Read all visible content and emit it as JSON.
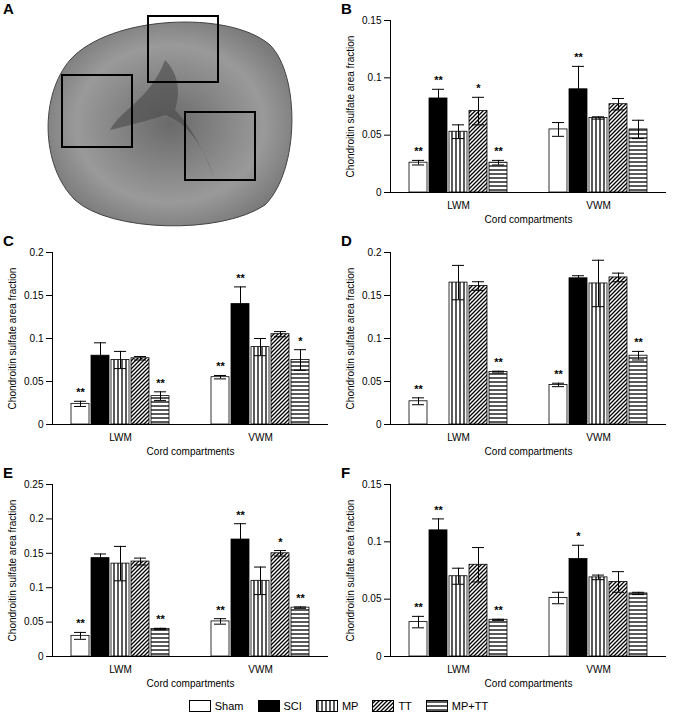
{
  "panel_a": {
    "label": "A"
  },
  "chart_data": [
    {
      "type": "bar",
      "title": "B",
      "x_label": "Cord compartments",
      "y_label": "Chondroitin sulfate area fraction",
      "categories": [
        "LWM",
        "VWM"
      ],
      "ylim": [
        0,
        0.15
      ],
      "yticks": [
        0,
        0.05,
        0.1,
        0.15
      ],
      "series": [
        {
          "name": "Sham",
          "color": "#ffffff",
          "values": [
            0.026,
            0.055
          ],
          "errors": [
            0.002,
            0.006
          ],
          "annotations": [
            "**",
            null
          ]
        },
        {
          "name": "SCI",
          "color": "#000000",
          "values": [
            0.082,
            0.09
          ],
          "errors": [
            0.008,
            0.02
          ],
          "annotations": [
            "**",
            "**"
          ]
        },
        {
          "name": "MP",
          "color": "#000000",
          "values": [
            0.053,
            0.065
          ],
          "errors": [
            0.006,
            0.001
          ],
          "annotations": [
            null,
            null
          ]
        },
        {
          "name": "TT",
          "color": "#000000",
          "values": [
            0.071,
            0.077
          ],
          "errors": [
            0.012,
            0.005
          ],
          "annotations": [
            "*",
            null
          ]
        },
        {
          "name": "MP+TT",
          "color": "#000000",
          "values": [
            0.026,
            0.055
          ],
          "errors": [
            0.002,
            0.008
          ],
          "annotations": [
            "**",
            null
          ]
        }
      ]
    },
    {
      "type": "bar",
      "title": "C",
      "x_label": "Cord compartments",
      "y_label": "Chondroitin sulfate area fraction",
      "categories": [
        "LWM",
        "VWM"
      ],
      "ylim": [
        0,
        0.2
      ],
      "yticks": [
        0,
        0.05,
        0.1,
        0.15,
        0.2
      ],
      "series": [
        {
          "name": "Sham",
          "color": "#ffffff",
          "values": [
            0.024,
            0.055
          ],
          "errors": [
            0.003,
            0.002
          ],
          "annotations": [
            "**",
            "**"
          ]
        },
        {
          "name": "SCI",
          "color": "#000000",
          "values": [
            0.08,
            0.14
          ],
          "errors": [
            0.015,
            0.02
          ],
          "annotations": [
            null,
            "**"
          ]
        },
        {
          "name": "MP",
          "color": "#000000",
          "values": [
            0.075,
            0.09
          ],
          "errors": [
            0.01,
            0.01
          ],
          "annotations": [
            null,
            null
          ]
        },
        {
          "name": "TT",
          "color": "#000000",
          "values": [
            0.077,
            0.105
          ],
          "errors": [
            0.002,
            0.003
          ],
          "annotations": [
            null,
            null
          ]
        },
        {
          "name": "MP+TT",
          "color": "#000000",
          "values": [
            0.033,
            0.075
          ],
          "errors": [
            0.005,
            0.012
          ],
          "annotations": [
            "**",
            "*"
          ]
        }
      ]
    },
    {
      "type": "bar",
      "title": "D",
      "x_label": "Cord compartments",
      "y_label": "Chondroitin sulfate area fraction",
      "categories": [
        "LWM",
        "VWM"
      ],
      "ylim": [
        0,
        0.2
      ],
      "yticks": [
        0,
        0.05,
        0.1,
        0.15,
        0.2
      ],
      "series": [
        {
          "name": "Sham",
          "color": "#ffffff",
          "values": [
            0.027,
            0.046
          ],
          "errors": [
            0.004,
            0.002
          ],
          "annotations": [
            "**",
            "**"
          ]
        },
        {
          "name": "SCI",
          "color": "#000000",
          "values": [
            null,
            0.17
          ],
          "errors": [
            null,
            0.003
          ],
          "annotations": [
            null,
            null
          ]
        },
        {
          "name": "MP",
          "color": "#000000",
          "values": [
            0.165,
            0.164
          ],
          "errors": [
            0.02,
            0.027
          ],
          "annotations": [
            null,
            null
          ]
        },
        {
          "name": "TT",
          "color": "#000000",
          "values": [
            0.161,
            0.171
          ],
          "errors": [
            0.005,
            0.005
          ],
          "annotations": [
            null,
            null
          ]
        },
        {
          "name": "MP+TT",
          "color": "#000000",
          "values": [
            0.061,
            0.08
          ],
          "errors": [
            0.001,
            0.005
          ],
          "annotations": [
            "**",
            "**"
          ]
        }
      ]
    },
    {
      "type": "bar",
      "title": "E",
      "x_label": "Cord compartments",
      "y_label": "Chondroitin sulfate area fraction",
      "categories": [
        "LWM",
        "VWM"
      ],
      "ylim": [
        0,
        0.25
      ],
      "yticks": [
        0,
        0.05,
        0.1,
        0.15,
        0.2,
        0.25
      ],
      "series": [
        {
          "name": "Sham",
          "color": "#ffffff",
          "values": [
            0.03,
            0.051
          ],
          "errors": [
            0.005,
            0.004
          ],
          "annotations": [
            "**",
            "**"
          ]
        },
        {
          "name": "SCI",
          "color": "#000000",
          "values": [
            0.143,
            0.17
          ],
          "errors": [
            0.006,
            0.023
          ],
          "annotations": [
            null,
            "**"
          ]
        },
        {
          "name": "MP",
          "color": "#000000",
          "values": [
            0.135,
            0.11
          ],
          "errors": [
            0.025,
            0.02
          ],
          "annotations": [
            null,
            null
          ]
        },
        {
          "name": "TT",
          "color": "#000000",
          "values": [
            0.138,
            0.15
          ],
          "errors": [
            0.005,
            0.004
          ],
          "annotations": [
            null,
            "*"
          ]
        },
        {
          "name": "MP+TT",
          "color": "#000000",
          "values": [
            0.04,
            0.071
          ],
          "errors": [
            0.001,
            0.001
          ],
          "annotations": [
            "**",
            "**"
          ]
        }
      ]
    },
    {
      "type": "bar",
      "title": "F",
      "x_label": "Cord compartments",
      "y_label": "Chondroitin sulfate area fraction",
      "categories": [
        "LWM",
        "VWM"
      ],
      "ylim": [
        0,
        0.15
      ],
      "yticks": [
        0,
        0.05,
        0.1,
        0.15
      ],
      "series": [
        {
          "name": "Sham",
          "color": "#ffffff",
          "values": [
            0.03,
            0.051
          ],
          "errors": [
            0.005,
            0.005
          ],
          "annotations": [
            "**",
            null
          ]
        },
        {
          "name": "SCI",
          "color": "#000000",
          "values": [
            0.11,
            0.085
          ],
          "errors": [
            0.01,
            0.012
          ],
          "annotations": [
            "**",
            "*"
          ]
        },
        {
          "name": "MP",
          "color": "#000000",
          "values": [
            0.07,
            0.069
          ],
          "errors": [
            0.007,
            0.002
          ],
          "annotations": [
            null,
            null
          ]
        },
        {
          "name": "TT",
          "color": "#000000",
          "values": [
            0.08,
            0.065
          ],
          "errors": [
            0.015,
            0.009
          ],
          "annotations": [
            null,
            null
          ]
        },
        {
          "name": "MP+TT",
          "color": "#000000",
          "values": [
            0.032,
            0.055
          ],
          "errors": [
            0.0005,
            0.001
          ],
          "annotations": [
            "**",
            null
          ]
        }
      ]
    }
  ]
}
